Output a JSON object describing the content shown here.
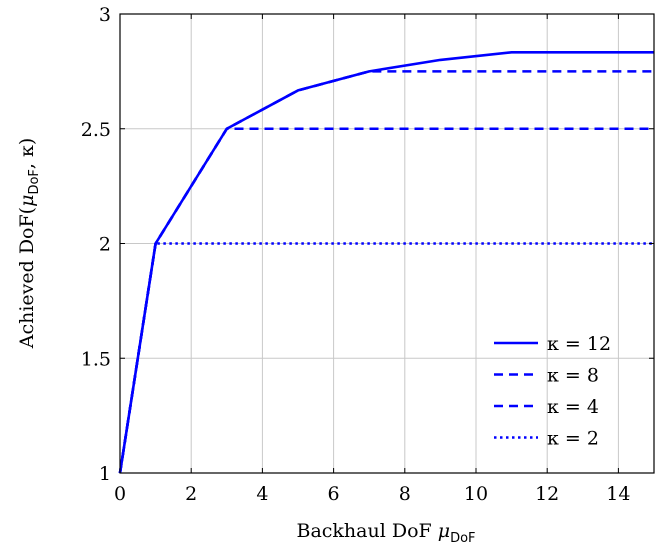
{
  "chart_data": {
    "type": "line",
    "title": "",
    "xlabel": "Backhaul DoF",
    "xlabel_symbol": "μ",
    "xlabel_subscript": "DoF",
    "ylabel": "Achieved DoF(",
    "ylabel_symbol": "μ",
    "ylabel_subscript": "DoF",
    "ylabel_suffix": ", κ)",
    "xlim": [
      0,
      15
    ],
    "ylim": [
      1,
      3
    ],
    "xticks": [
      0,
      2,
      4,
      6,
      8,
      10,
      12,
      14
    ],
    "yticks": [
      1,
      1.5,
      2,
      2.5,
      3
    ],
    "ytick_labels": [
      "1",
      "1.5",
      "2",
      "2.5",
      "3"
    ],
    "grid": true,
    "legend_position": "bottom-right",
    "series": [
      {
        "name": "κ = 12",
        "style": "solid",
        "color": "#0000ff",
        "points": [
          [
            0,
            1
          ],
          [
            1,
            2
          ],
          [
            3,
            2.5
          ],
          [
            5,
            2.667
          ],
          [
            7,
            2.75
          ],
          [
            9,
            2.8
          ],
          [
            11,
            2.833
          ],
          [
            15,
            2.833
          ]
        ]
      },
      {
        "name": "κ = 8",
        "style": "dashed",
        "color": "#0000ff",
        "points": [
          [
            0,
            1
          ],
          [
            1,
            2
          ],
          [
            3,
            2.5
          ],
          [
            5,
            2.667
          ],
          [
            7,
            2.75
          ],
          [
            15,
            2.75
          ]
        ]
      },
      {
        "name": "κ = 4",
        "style": "dashed",
        "color": "#0000ff",
        "points": [
          [
            0,
            1
          ],
          [
            1,
            2
          ],
          [
            3,
            2.5
          ],
          [
            15,
            2.5
          ]
        ]
      },
      {
        "name": "κ = 2",
        "style": "dotted",
        "color": "#0000ff",
        "points": [
          [
            0,
            1
          ],
          [
            1,
            2
          ],
          [
            15,
            2
          ]
        ]
      }
    ]
  }
}
